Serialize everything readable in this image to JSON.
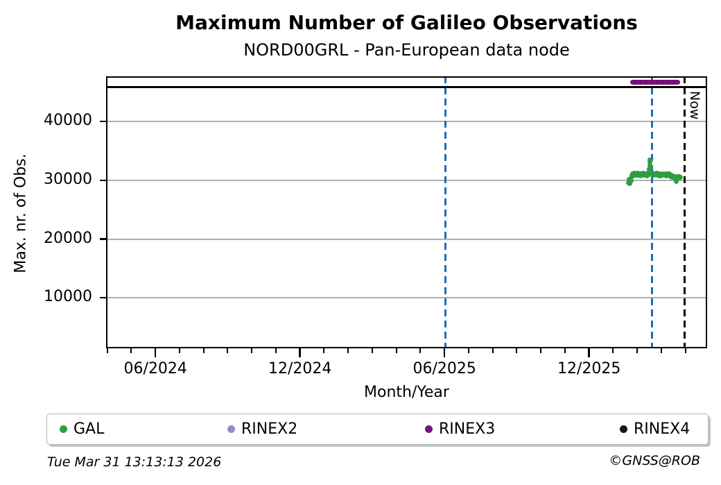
{
  "chart_data": {
    "type": "scatter",
    "title": "Maximum Number of Galileo Observations",
    "subtitle": "NORD00GRL - Pan-European data node",
    "xlabel": "Month/Year",
    "ylabel": "Max. nr. of Obs.",
    "x_axis": {
      "unit": "months since 2024-01-01",
      "xlim_months": [
        2.95,
        27.9
      ],
      "major_ticks": [
        {
          "month": 5,
          "label": "06/2024"
        },
        {
          "month": 11,
          "label": "12/2024"
        },
        {
          "month": 17,
          "label": "06/2025"
        },
        {
          "month": 23,
          "label": "12/2025"
        }
      ],
      "minor_tick_months": [
        3,
        4,
        6,
        7,
        8,
        9,
        10,
        12,
        13,
        14,
        15,
        16,
        18,
        19,
        20,
        21,
        22,
        24,
        25,
        26,
        27
      ]
    },
    "y_axis": {
      "ylim": [
        1400,
        47700
      ],
      "ticks": [
        {
          "value": 10000,
          "label": "10000"
        },
        {
          "value": 20000,
          "label": "20000"
        },
        {
          "value": 30000,
          "label": "30000"
        },
        {
          "value": 40000,
          "label": "40000"
        }
      ],
      "grid": true,
      "grid_color": "#b0b0b0"
    },
    "series": [
      {
        "name": "GAL",
        "type": "scatter",
        "color": "#2f9e41",
        "points": [
          [
            24.62,
            29600
          ],
          [
            24.65,
            30150
          ],
          [
            24.68,
            29450
          ],
          [
            24.71,
            30300
          ],
          [
            24.74,
            29900
          ],
          [
            24.77,
            30850
          ],
          [
            24.81,
            31050
          ],
          [
            24.84,
            30800
          ],
          [
            24.87,
            31200
          ],
          [
            24.9,
            30950
          ],
          [
            24.93,
            31100
          ],
          [
            24.97,
            30850
          ],
          [
            25.0,
            31250
          ],
          [
            25.03,
            31000
          ],
          [
            25.06,
            30900
          ],
          [
            25.1,
            31150
          ],
          [
            25.13,
            30800
          ],
          [
            25.16,
            31100
          ],
          [
            25.19,
            30950
          ],
          [
            25.23,
            31200
          ],
          [
            25.26,
            30850
          ],
          [
            25.29,
            31050
          ],
          [
            25.32,
            30900
          ],
          [
            25.35,
            31150
          ],
          [
            25.39,
            31000
          ],
          [
            25.42,
            30800
          ],
          [
            25.45,
            31100
          ],
          [
            25.48,
            31300
          ],
          [
            25.51,
            31950
          ],
          [
            25.52,
            32550
          ],
          [
            25.53,
            33150
          ],
          [
            25.54,
            33450
          ],
          [
            25.56,
            32250
          ],
          [
            25.58,
            31150
          ],
          [
            25.61,
            30900
          ],
          [
            25.65,
            31200
          ],
          [
            25.68,
            31000
          ],
          [
            25.71,
            30850
          ],
          [
            25.74,
            31100
          ],
          [
            25.77,
            30950
          ],
          [
            25.81,
            31250
          ],
          [
            25.84,
            30900
          ],
          [
            25.87,
            31050
          ],
          [
            25.9,
            30800
          ],
          [
            25.94,
            31150
          ],
          [
            25.97,
            31000
          ],
          [
            26.0,
            30700
          ],
          [
            26.03,
            30950
          ],
          [
            26.06,
            31100
          ],
          [
            26.1,
            30850
          ],
          [
            26.13,
            31000
          ],
          [
            26.16,
            30900
          ],
          [
            26.19,
            31150
          ],
          [
            26.23,
            30800
          ],
          [
            26.26,
            31050
          ],
          [
            26.29,
            30950
          ],
          [
            26.32,
            31100
          ],
          [
            26.35,
            30850
          ],
          [
            26.39,
            30600
          ],
          [
            26.42,
            30900
          ],
          [
            26.45,
            30500
          ],
          [
            26.48,
            30750
          ],
          [
            26.52,
            30400
          ],
          [
            26.55,
            30650
          ],
          [
            26.58,
            30550
          ],
          [
            26.61,
            29750
          ],
          [
            26.65,
            30500
          ],
          [
            26.68,
            30650
          ],
          [
            26.71,
            30450
          ],
          [
            26.74,
            30600
          ],
          [
            26.77,
            30350
          ],
          [
            26.8,
            30550
          ]
        ]
      },
      {
        "name": "RINEX3",
        "type": "line",
        "color": "#7b107b",
        "y": 46700,
        "x_start": 24.7,
        "x_end": 26.78
      }
    ],
    "reference_lines": {
      "max_obs_hline": {
        "y": 45900,
        "color": "#000000",
        "style": "solid"
      },
      "event_vlines": [
        {
          "month": 17.05,
          "color": "#1c6bbf",
          "style": "dashed"
        },
        {
          "month": 25.62,
          "color": "#1c6bbf",
          "style": "dashed"
        }
      ],
      "now_line": {
        "month": 26.97,
        "color": "#000000",
        "style": "dashed",
        "label": "Now"
      }
    },
    "legend": {
      "position": "bottom",
      "items": [
        {
          "label": "GAL",
          "color": "#2f9e41"
        },
        {
          "label": "RINEX2",
          "color": "#8f8fce"
        },
        {
          "label": "RINEX3",
          "color": "#7b107b"
        },
        {
          "label": "RINEX4",
          "color": "#260b26"
        }
      ]
    }
  },
  "footer": {
    "timestamp": "Tue Mar 31 13:13:13 2026",
    "credit": "©GNSS@ROB"
  }
}
